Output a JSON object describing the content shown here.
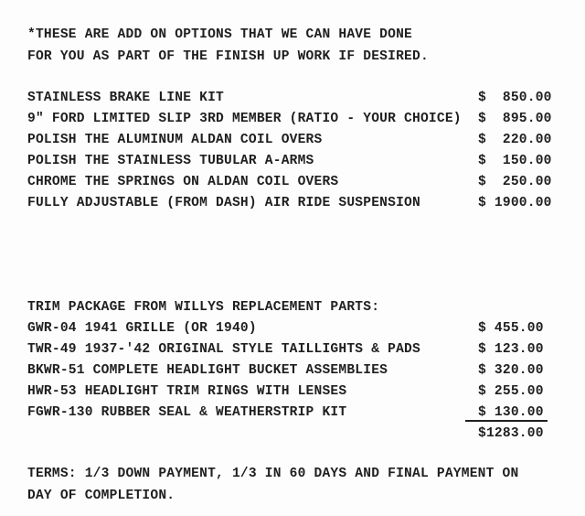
{
  "page": {
    "background_color": "#fdfdfd",
    "ink_color": "#1f1f1f"
  },
  "header": {
    "line1": "*THESE ARE ADD ON OPTIONS THAT WE CAN HAVE DONE",
    "line2": "FOR YOU AS PART OF THE FINISH UP WORK IF DESIRED."
  },
  "options": {
    "items": [
      {
        "label": "STAINLESS BRAKE LINE KIT",
        "price": "$  850.00"
      },
      {
        "label": "9\" FORD LIMITED SLIP 3RD MEMBER (RATIO - YOUR CHOICE)",
        "price": "$  895.00"
      },
      {
        "label": "POLISH THE ALUMINUM ALDAN COIL OVERS",
        "price": "$  220.00"
      },
      {
        "label": "POLISH THE STAINLESS TUBULAR A-ARMS",
        "price": "$  150.00"
      },
      {
        "label": "CHROME THE SPRINGS ON ALDAN COIL OVERS",
        "price": "$  250.00"
      },
      {
        "label": "FULLY ADJUSTABLE (FROM DASH) AIR RIDE SUSPENSION",
        "price": "$ 1900.00"
      }
    ]
  },
  "trim_package": {
    "heading": "TRIM PACKAGE FROM WILLYS REPLACEMENT PARTS:",
    "items": [
      {
        "label": "GWR-04 1941 GRILLE (OR 1940)",
        "price": "$ 455.00"
      },
      {
        "label": "TWR-49 1937-'42 ORIGINAL STYLE TAILLIGHTS & PADS",
        "price": "$ 123.00"
      },
      {
        "label": "BKWR-51 COMPLETE HEADLIGHT BUCKET ASSEMBLIES",
        "price": "$ 320.00"
      },
      {
        "label": "HWR-53 HEADLIGHT TRIM RINGS WITH LENSES",
        "price": "$ 255.00"
      },
      {
        "label": "FGWR-130 RUBBER SEAL & WEATHERSTRIP KIT",
        "price": "$ 130.00"
      }
    ],
    "total": "$1283.00"
  },
  "terms": {
    "line1": "TERMS: 1/3 DOWN PAYMENT, 1/3 IN 60 DAYS AND FINAL PAYMENT ON",
    "line2": "DAY OF COMPLETION."
  }
}
